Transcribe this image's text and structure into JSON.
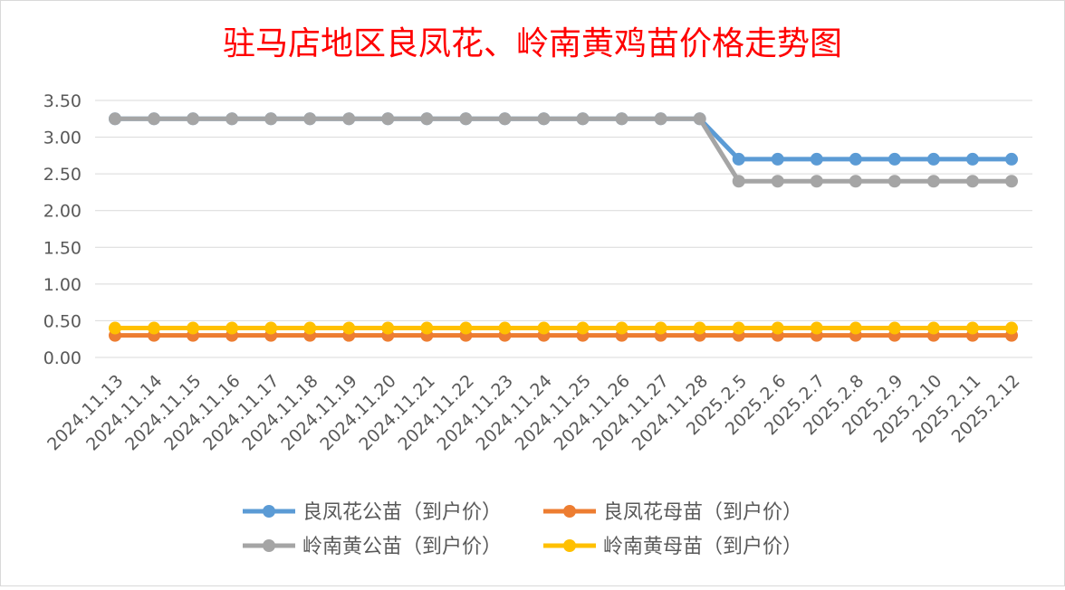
{
  "chart_data": {
    "type": "line",
    "title": "驻马店地区良凤花、岭南黄鸡苗价格走势图",
    "xlabel": "",
    "ylabel": "",
    "ylim": [
      0,
      3.5
    ],
    "yticks": [
      "0.00",
      "0.50",
      "1.00",
      "1.50",
      "2.00",
      "2.50",
      "3.00",
      "3.50"
    ],
    "grid": true,
    "legend_position": "bottom",
    "categories": [
      "2024.11.13",
      "2024.11.14",
      "2024.11.15",
      "2024.11.16",
      "2024.11.17",
      "2024.11.18",
      "2024.11.19",
      "2024.11.20",
      "2024.11.21",
      "2024.11.22",
      "2024.11.23",
      "2024.11.24",
      "2024.11.25",
      "2024.11.26",
      "2024.11.27",
      "2024.11.28",
      "2025.2.5",
      "2025.2.6",
      "2025.2.7",
      "2025.2.8",
      "2025.2.9",
      "2025.2.10",
      "2025.2.11",
      "2025.2.12"
    ],
    "series": [
      {
        "name": "良凤花公苗（到户价）",
        "color": "#5b9bd5",
        "values": [
          3.25,
          3.25,
          3.25,
          3.25,
          3.25,
          3.25,
          3.25,
          3.25,
          3.25,
          3.25,
          3.25,
          3.25,
          3.25,
          3.25,
          3.25,
          3.25,
          2.7,
          2.7,
          2.7,
          2.7,
          2.7,
          2.7,
          2.7,
          2.7
        ]
      },
      {
        "name": "良凤花母苗（到户价）",
        "color": "#ed7d31",
        "values": [
          0.3,
          0.3,
          0.3,
          0.3,
          0.3,
          0.3,
          0.3,
          0.3,
          0.3,
          0.3,
          0.3,
          0.3,
          0.3,
          0.3,
          0.3,
          0.3,
          0.3,
          0.3,
          0.3,
          0.3,
          0.3,
          0.3,
          0.3,
          0.3
        ]
      },
      {
        "name": "岭南黄公苗（到户价）",
        "color": "#a5a5a5",
        "values": [
          3.25,
          3.25,
          3.25,
          3.25,
          3.25,
          3.25,
          3.25,
          3.25,
          3.25,
          3.25,
          3.25,
          3.25,
          3.25,
          3.25,
          3.25,
          3.25,
          2.4,
          2.4,
          2.4,
          2.4,
          2.4,
          2.4,
          2.4,
          2.4
        ]
      },
      {
        "name": "岭南黄母苗（到户价）",
        "color": "#ffc000",
        "values": [
          0.4,
          0.4,
          0.4,
          0.4,
          0.4,
          0.4,
          0.4,
          0.4,
          0.4,
          0.4,
          0.4,
          0.4,
          0.4,
          0.4,
          0.4,
          0.4,
          0.4,
          0.4,
          0.4,
          0.4,
          0.4,
          0.4,
          0.4,
          0.4
        ]
      }
    ]
  },
  "colors": {
    "title": "#ff0000",
    "gridline": "#d9d9d9",
    "axis_text": "#595959"
  }
}
